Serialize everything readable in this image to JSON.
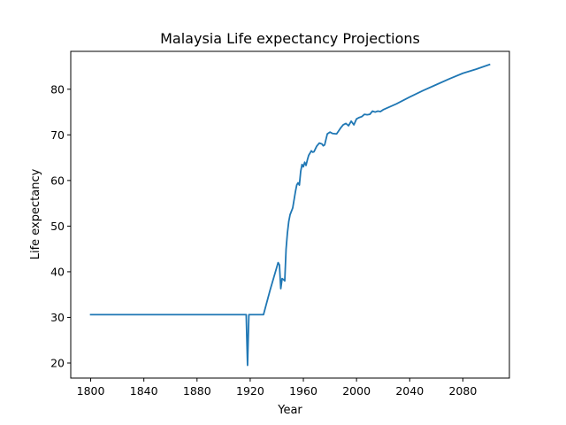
{
  "chart_data": {
    "type": "line",
    "title": "Malaysia Life expectancy Projections",
    "xlabel": "Year",
    "ylabel": "Life expectancy",
    "xlim": [
      1785,
      2115
    ],
    "ylim": [
      16.7,
      88.3
    ],
    "xticks": [
      1800,
      1840,
      1880,
      1920,
      1960,
      2000,
      2040,
      2080
    ],
    "yticks": [
      20,
      30,
      40,
      50,
      60,
      70,
      80
    ],
    "grid": false,
    "legend": "none",
    "line_color": "#1f77b4",
    "series": [
      {
        "x": [
          1800,
          1830,
          1860,
          1890,
          1910,
          1917,
          1918,
          1919,
          1920,
          1925,
          1930,
          1935,
          1940,
          1941,
          1942,
          1943,
          1944,
          1945,
          1946,
          1947,
          1948,
          1949,
          1950,
          1952,
          1954,
          1955,
          1956,
          1957,
          1958,
          1959,
          1960,
          1961,
          1962,
          1963,
          1964,
          1965,
          1966,
          1967,
          1968,
          1970,
          1972,
          1974,
          1975,
          1976,
          1978,
          1980,
          1982,
          1985,
          1988,
          1990,
          1992,
          1994,
          1996,
          1998,
          2000,
          2002,
          2004,
          2006,
          2008,
          2010,
          2012,
          2014,
          2016,
          2018,
          2020,
          2030,
          2040,
          2050,
          2060,
          2070,
          2080,
          2090,
          2100
        ],
        "y": [
          30.6,
          30.6,
          30.6,
          30.6,
          30.6,
          30.6,
          19.5,
          30.6,
          30.6,
          30.6,
          30.6,
          36.0,
          41.0,
          42.0,
          41.5,
          36.3,
          38.5,
          38.3,
          38.0,
          45.0,
          48.5,
          51.0,
          52.5,
          54.0,
          57.5,
          59.0,
          59.5,
          59.0,
          62.0,
          63.5,
          63.0,
          64.0,
          63.3,
          64.5,
          65.5,
          66.0,
          66.5,
          66.2,
          66.3,
          67.5,
          68.2,
          68.0,
          67.6,
          67.8,
          70.2,
          70.6,
          70.3,
          70.2,
          71.5,
          72.2,
          72.5,
          72.0,
          73.0,
          72.2,
          73.5,
          73.8,
          74.0,
          74.5,
          74.4,
          74.5,
          75.2,
          75.0,
          75.2,
          75.1,
          75.5,
          76.8,
          78.3,
          79.7,
          81.0,
          82.3,
          83.5,
          84.4,
          85.4
        ]
      }
    ]
  }
}
